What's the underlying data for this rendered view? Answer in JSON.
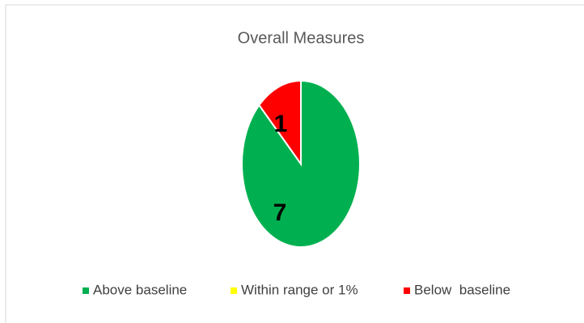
{
  "chart_data": {
    "type": "pie",
    "title": "Overall Measures",
    "categories": [
      "Above baseline",
      "Within range or 1%",
      "Below  baseline"
    ],
    "values": [
      7,
      0,
      1
    ],
    "colors": [
      "#00b050",
      "#ffff00",
      "#ff0000"
    ],
    "legend": "bottom"
  }
}
